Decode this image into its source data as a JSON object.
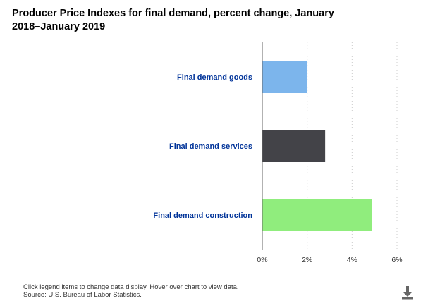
{
  "chart_data": {
    "type": "bar",
    "orientation": "horizontal",
    "title": "Producer Price Indexes for final demand, percent change, January 2018–January 2019",
    "categories": [
      "Final demand goods",
      "Final demand services",
      "Final demand construction"
    ],
    "values": [
      2.0,
      2.8,
      4.9
    ],
    "colors": [
      "#7cb5ec",
      "#434348",
      "#90ed7d"
    ],
    "xlim": [
      0,
      6
    ],
    "xticks": [
      0,
      2,
      4,
      6
    ],
    "xtick_labels": [
      "0%",
      "2%",
      "4%",
      "6%"
    ],
    "grid": true,
    "label_color": "#003399"
  },
  "footer": {
    "instructions": "Click legend items to change data display. Hover over chart to view data.",
    "source": "Source: U.S. Bureau of Labor Statistics."
  },
  "icons": {
    "download": "download-icon"
  }
}
